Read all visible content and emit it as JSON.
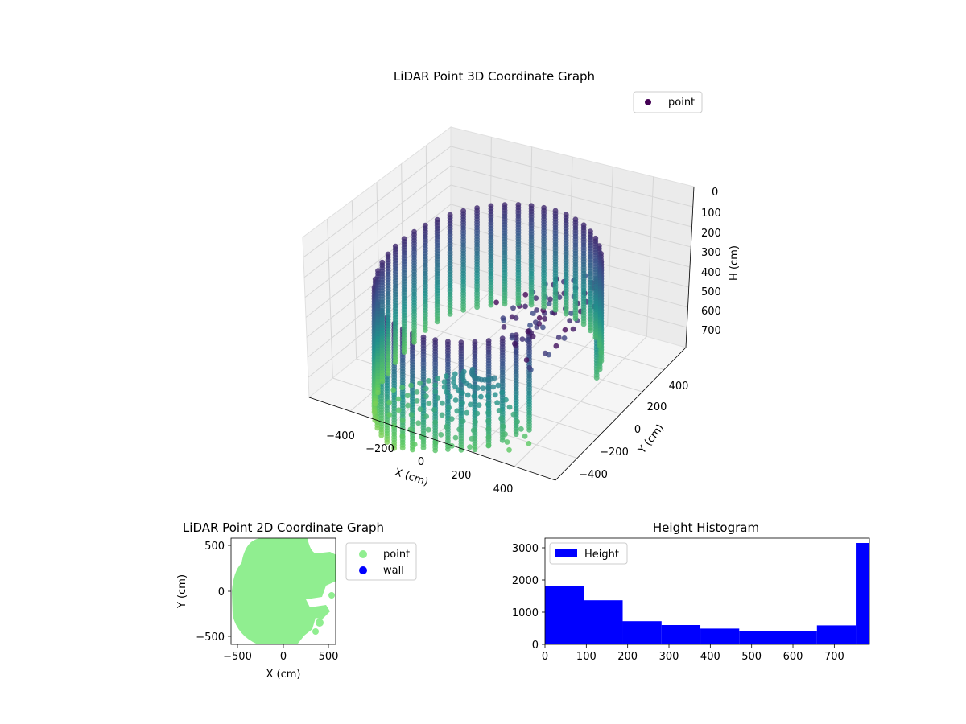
{
  "chart_data": [
    {
      "type": "scatter3d",
      "title": "LiDAR Point 3D Coordinate Graph",
      "xlabel": "X (cm)",
      "ylabel": "Y (cm)",
      "zlabel": "H (cm)",
      "xticks": [
        "−400",
        "−200",
        "0",
        "200",
        "400"
      ],
      "yticks": [
        "−400",
        "−200",
        "0",
        "200",
        "400"
      ],
      "zticks": [
        "0",
        "100",
        "200",
        "300",
        "400",
        "500",
        "600",
        "700"
      ],
      "xlim": [
        -550,
        550
      ],
      "ylim": [
        -550,
        550
      ],
      "zlim": [
        780,
        0
      ],
      "legend": {
        "entries": [
          "point"
        ],
        "placement": "top-right"
      },
      "colormap": "viridis",
      "colormap_colors": [
        "#440154",
        "#3b528b",
        "#21918c",
        "#5ec962",
        "#fde725"
      ],
      "series": [
        {
          "name": "point",
          "description_points": [
            {
              "x": -400,
              "y": 300,
              "h": 50
            },
            {
              "x": -480,
              "y": 0,
              "h": 400
            },
            {
              "x": -300,
              "y": -300,
              "h": 700
            },
            {
              "x": 0,
              "y": -450,
              "h": 760
            },
            {
              "x": 250,
              "y": -350,
              "h": 720
            },
            {
              "x": 100,
              "y": 200,
              "h": 100
            },
            {
              "x": 350,
              "y": 250,
              "h": 200
            },
            {
              "x": 420,
              "y": -100,
              "h": 400
            }
          ]
        }
      ]
    },
    {
      "type": "scatter",
      "title": "LiDAR Point 2D Coordinate Graph",
      "xlabel": "X (cm)",
      "ylabel": "Y (cm)",
      "xticks": [
        "−500",
        "0",
        "500"
      ],
      "yticks": [
        "500",
        "0",
        "−500"
      ],
      "xlim": [
        -580,
        580
      ],
      "ylim": [
        -580,
        580
      ],
      "legend": {
        "entries": [
          "point",
          "wall"
        ],
        "placement": "outside-right"
      },
      "series": [
        {
          "name": "point",
          "color": "#90ee90"
        },
        {
          "name": "wall",
          "color": "#0000ff"
        }
      ]
    },
    {
      "type": "bar",
      "title": "Height Histogram",
      "xticks": [
        "0",
        "100",
        "200",
        "300",
        "400",
        "500",
        "600",
        "700"
      ],
      "yticks": [
        "0",
        "1000",
        "2000",
        "3000"
      ],
      "xlim": [
        0,
        785
      ],
      "ylim": [
        0,
        3300
      ],
      "legend": {
        "entries": [
          "Height"
        ],
        "placement": "top-left"
      },
      "series": [
        {
          "name": "Height",
          "color": "#0000ff",
          "bin_edges": [
            0,
            94,
            188,
            282,
            376,
            470,
            564,
            658,
            752,
            785
          ],
          "values": [
            1800,
            1370,
            720,
            600,
            490,
            420,
            420,
            590,
            3150
          ]
        }
      ]
    }
  ]
}
